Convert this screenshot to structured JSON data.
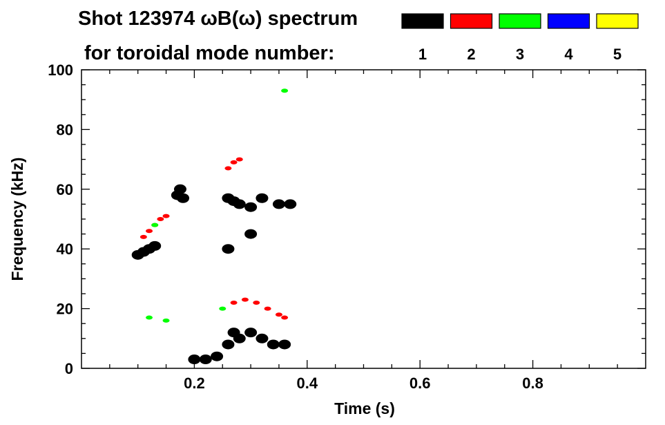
{
  "title_line1": "Shot 123974 ωB(ω) spectrum",
  "title_line2": "for toroidal mode number:",
  "legend": [
    {
      "label": "1",
      "color": "#000000"
    },
    {
      "label": "2",
      "color": "#ff0000"
    },
    {
      "label": "3",
      "color": "#00ff00"
    },
    {
      "label": "4",
      "color": "#0000ff"
    },
    {
      "label": "5",
      "color": "#ffff00"
    }
  ],
  "chart_data": {
    "type": "heatmap",
    "title": "Shot 123974 ωB(ω) spectrum",
    "xlabel": "Time (s)",
    "ylabel": "Frequency (kHz)",
    "xlim": [
      0.0,
      1.0
    ],
    "ylim": [
      0,
      100
    ],
    "xticks": [
      "0.2",
      "0.4",
      "0.6",
      "0.8"
    ],
    "yticks": [
      "0",
      "20",
      "40",
      "60",
      "80",
      "100"
    ],
    "series": [
      {
        "name": "1",
        "color": "#000000",
        "points": [
          [
            0.1,
            38
          ],
          [
            0.11,
            39
          ],
          [
            0.12,
            40
          ],
          [
            0.13,
            41
          ],
          [
            0.17,
            58
          ],
          [
            0.175,
            60
          ],
          [
            0.18,
            57
          ],
          [
            0.2,
            3
          ],
          [
            0.22,
            3
          ],
          [
            0.24,
            4
          ],
          [
            0.26,
            8
          ],
          [
            0.27,
            12
          ],
          [
            0.28,
            10
          ],
          [
            0.3,
            12
          ],
          [
            0.32,
            10
          ],
          [
            0.34,
            8
          ],
          [
            0.36,
            8
          ],
          [
            0.26,
            57
          ],
          [
            0.27,
            56
          ],
          [
            0.28,
            55
          ],
          [
            0.3,
            54
          ],
          [
            0.32,
            57
          ],
          [
            0.35,
            55
          ],
          [
            0.37,
            55
          ],
          [
            0.3,
            45
          ],
          [
            0.26,
            40
          ]
        ]
      },
      {
        "name": "2",
        "color": "#ff0000",
        "points": [
          [
            0.11,
            44
          ],
          [
            0.12,
            46
          ],
          [
            0.13,
            48
          ],
          [
            0.14,
            50
          ],
          [
            0.15,
            51
          ],
          [
            0.26,
            67
          ],
          [
            0.27,
            69
          ],
          [
            0.28,
            70
          ],
          [
            0.27,
            22
          ],
          [
            0.29,
            23
          ],
          [
            0.31,
            22
          ],
          [
            0.33,
            20
          ],
          [
            0.35,
            18
          ],
          [
            0.36,
            17
          ]
        ]
      },
      {
        "name": "3",
        "color": "#00ff00",
        "points": [
          [
            0.13,
            48
          ],
          [
            0.12,
            17
          ],
          [
            0.15,
            16
          ],
          [
            0.25,
            20
          ],
          [
            0.36,
            93
          ]
        ]
      },
      {
        "name": "4",
        "color": "#0000ff",
        "points": []
      },
      {
        "name": "5",
        "color": "#ffff00",
        "points": []
      }
    ]
  }
}
